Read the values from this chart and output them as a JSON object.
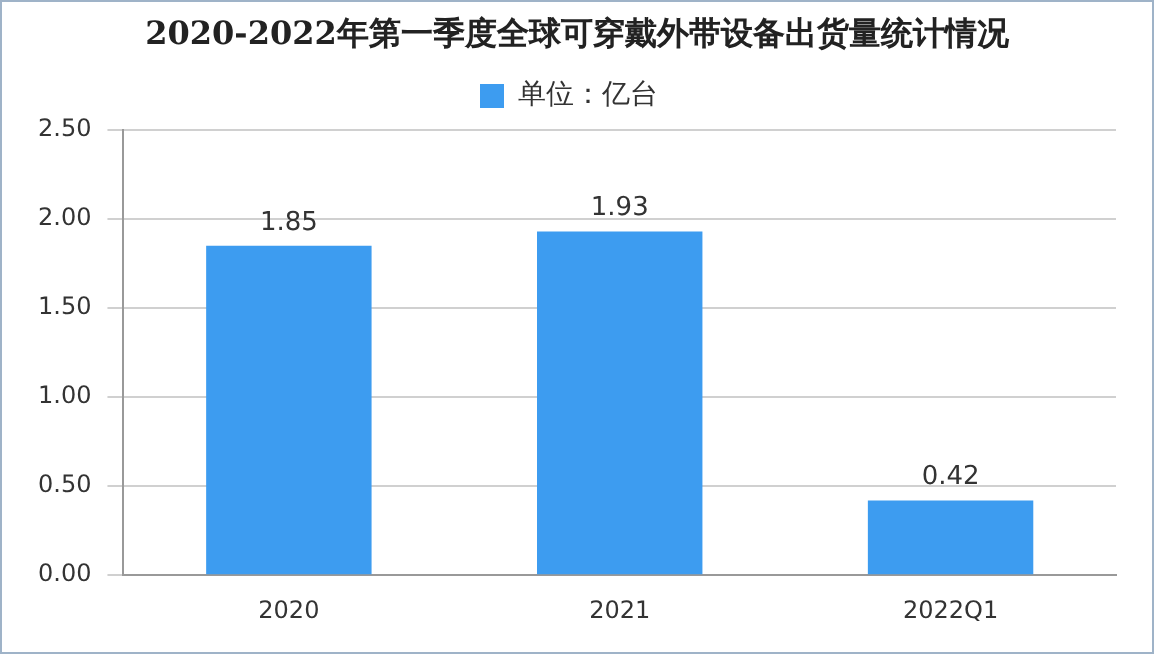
{
  "chart_data": {
    "type": "bar",
    "title": "2020-2022年第一季度全球可穿戴外带设备出货量统计情况",
    "categories": [
      "2020",
      "2021",
      "2022Q1"
    ],
    "series": [
      {
        "name": "单位：亿台",
        "color": "#3d9cf0",
        "values": [
          1.85,
          1.93,
          0.42
        ]
      }
    ],
    "ylim": [
      0,
      2.5
    ],
    "yticks": [
      {
        "value": 0,
        "label": "0.00"
      },
      {
        "value": 0.5,
        "label": "0.50"
      },
      {
        "value": 1,
        "label": "1.00"
      },
      {
        "value": 1.5,
        "label": "1.50"
      },
      {
        "value": 2,
        "label": "2.00"
      },
      {
        "value": 2.5,
        "label": "2.50"
      }
    ],
    "grid": "y",
    "legend": "top",
    "data_labels": true
  }
}
